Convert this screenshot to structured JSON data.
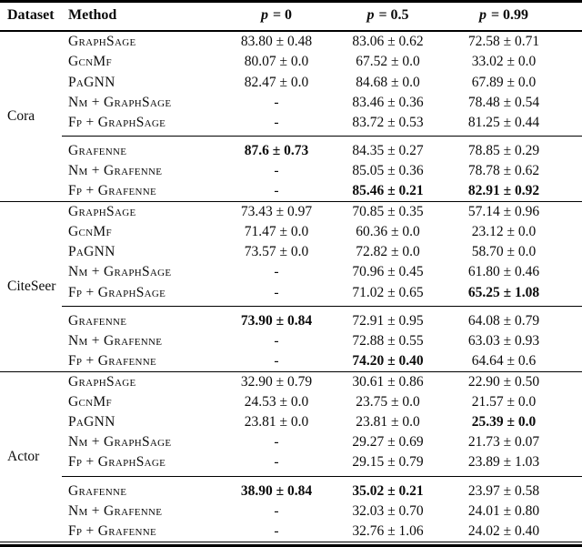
{
  "table": {
    "headers": {
      "dataset": "Dataset",
      "method": "Method",
      "p_cols": [
        {
          "sym": "p",
          "eq": "= 0"
        },
        {
          "sym": "p",
          "eq": "= 0.5"
        },
        {
          "sym": "p",
          "eq": "= 0.99"
        }
      ]
    },
    "groups": [
      {
        "dataset": "Cora",
        "blocks": [
          {
            "rows": [
              {
                "method": "GraphSage",
                "p0": {
                  "text": "83.80 ± 0.48"
                },
                "p05": {
                  "text": "83.06 ± 0.62"
                },
                "p099": {
                  "text": "72.58 ± 0.71"
                }
              },
              {
                "method": "GcnMf",
                "p0": {
                  "text": "80.07 ± 0.0"
                },
                "p05": {
                  "text": "67.52 ± 0.0"
                },
                "p099": {
                  "text": "33.02 ± 0.0"
                }
              },
              {
                "method": "PaGNN",
                "p0": {
                  "text": "82.47 ± 0.0"
                },
                "p05": {
                  "text": "84.68 ± 0.0"
                },
                "p099": {
                  "text": "67.89 ± 0.0"
                }
              },
              {
                "method": "Nm + GraphSage",
                "p0": {
                  "text": "-"
                },
                "p05": {
                  "text": "83.46 ± 0.36"
                },
                "p099": {
                  "text": "78.48 ± 0.54"
                }
              },
              {
                "method": "Fp + GraphSage",
                "p0": {
                  "text": "-"
                },
                "p05": {
                  "text": "83.72 ± 0.53"
                },
                "p099": {
                  "text": "81.25 ± 0.44"
                }
              }
            ]
          },
          {
            "rows": [
              {
                "method": "Grafenne",
                "p0": {
                  "text": "87.6 ± 0.73",
                  "bold": true
                },
                "p05": {
                  "text": "84.35 ± 0.27"
                },
                "p099": {
                  "text": "78.85 ± 0.29"
                }
              },
              {
                "method": "Nm + Grafenne",
                "p0": {
                  "text": "-"
                },
                "p05": {
                  "text": "85.05 ± 0.36"
                },
                "p099": {
                  "text": "78.78 ± 0.62"
                }
              },
              {
                "method": "Fp + Grafenne",
                "p0": {
                  "text": "-"
                },
                "p05": {
                  "text": "85.46 ± 0.21",
                  "bold": true
                },
                "p099": {
                  "text": "82.91 ± 0.92",
                  "bold": true
                }
              }
            ]
          }
        ]
      },
      {
        "dataset": "CiteSeer",
        "blocks": [
          {
            "rows": [
              {
                "method": "GraphSage",
                "p0": {
                  "text": "73.43 ± 0.97"
                },
                "p05": {
                  "text": "70.85 ± 0.35"
                },
                "p099": {
                  "text": "57.14 ± 0.96"
                }
              },
              {
                "method": "GcnMf",
                "p0": {
                  "text": "71.47 ± 0.0"
                },
                "p05": {
                  "text": "60.36 ± 0.0"
                },
                "p099": {
                  "text": "23.12 ± 0.0"
                }
              },
              {
                "method": "PaGNN",
                "p0": {
                  "text": "73.57 ± 0.0"
                },
                "p05": {
                  "text": "72.82 ± 0.0"
                },
                "p099": {
                  "text": "58.70 ± 0.0"
                }
              },
              {
                "method": "Nm + GraphSage",
                "p0": {
                  "text": "-"
                },
                "p05": {
                  "text": "70.96 ± 0.45"
                },
                "p099": {
                  "text": "61.80 ± 0.46"
                }
              },
              {
                "method": "Fp + GraphSage",
                "p0": {
                  "text": "-"
                },
                "p05": {
                  "text": "71.02 ± 0.65"
                },
                "p099": {
                  "text": "65.25 ± 1.08",
                  "bold": true
                }
              }
            ]
          },
          {
            "rows": [
              {
                "method": "Grafenne",
                "p0": {
                  "text": "73.90 ± 0.84",
                  "bold": true
                },
                "p05": {
                  "text": "72.91 ± 0.95"
                },
                "p099": {
                  "text": "64.08 ± 0.79"
                }
              },
              {
                "method": "Nm + Grafenne",
                "p0": {
                  "text": "-"
                },
                "p05": {
                  "text": "72.88 ± 0.55"
                },
                "p099": {
                  "text": "63.03 ± 0.93"
                }
              },
              {
                "method": "Fp + Grafenne",
                "p0": {
                  "text": "-"
                },
                "p05": {
                  "text": "74.20 ± 0.40",
                  "bold": true
                },
                "p099": {
                  "text": "64.64 ± 0.6"
                }
              }
            ]
          }
        ]
      },
      {
        "dataset": "Actor",
        "blocks": [
          {
            "rows": [
              {
                "method": "GraphSage",
                "p0": {
                  "text": "32.90 ± 0.79"
                },
                "p05": {
                  "text": "30.61 ± 0.86"
                },
                "p099": {
                  "text": "22.90 ± 0.50"
                }
              },
              {
                "method": "GcnMf",
                "p0": {
                  "text": "24.53 ± 0.0"
                },
                "p05": {
                  "text": "23.75 ± 0.0"
                },
                "p099": {
                  "text": "21.57 ± 0.0"
                }
              },
              {
                "method": "PaGNN",
                "p0": {
                  "text": "23.81 ± 0.0"
                },
                "p05": {
                  "text": "23.81 ± 0.0"
                },
                "p099": {
                  "text": "25.39 ± 0.0",
                  "bold": true
                }
              },
              {
                "method": "Nm + GraphSage",
                "p0": {
                  "text": "-"
                },
                "p05": {
                  "text": "29.27 ± 0.69"
                },
                "p099": {
                  "text": "21.73 ± 0.07"
                }
              },
              {
                "method": "Fp + GraphSage",
                "p0": {
                  "text": "-"
                },
                "p05": {
                  "text": "29.15 ± 0.79"
                },
                "p099": {
                  "text": "23.89 ± 1.03"
                }
              }
            ]
          },
          {
            "rows": [
              {
                "method": "Grafenne",
                "p0": {
                  "text": "38.90 ± 0.84",
                  "bold": true
                },
                "p05": {
                  "text": "35.02 ± 0.21",
                  "bold": true
                },
                "p099": {
                  "text": "23.97 ± 0.58"
                }
              },
              {
                "method": "Nm + Grafenne",
                "p0": {
                  "text": "-"
                },
                "p05": {
                  "text": "32.03 ± 0.70"
                },
                "p099": {
                  "text": "24.01 ± 0.80"
                }
              },
              {
                "method": "Fp + Grafenne",
                "p0": {
                  "text": "-"
                },
                "p05": {
                  "text": "32.76 ± 1.06"
                },
                "p099": {
                  "text": "24.02 ± 0.40"
                }
              }
            ]
          }
        ]
      }
    ]
  }
}
